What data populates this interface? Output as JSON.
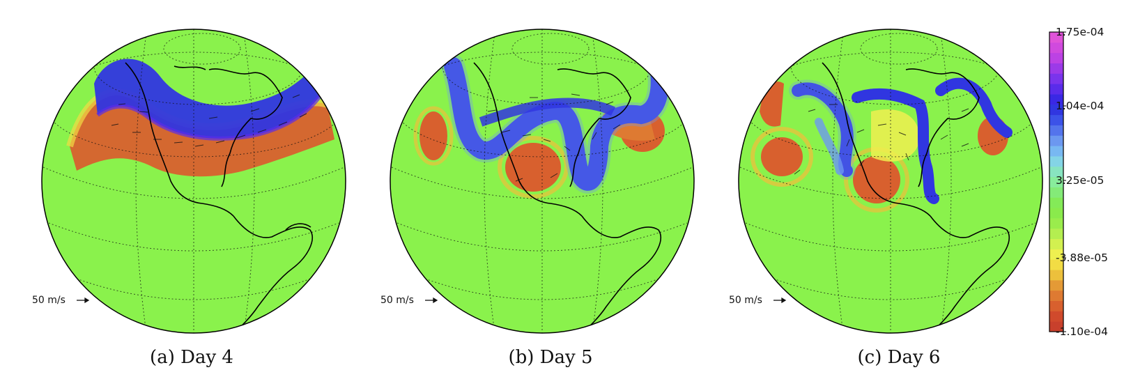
{
  "panels": [
    {
      "caption": "(a) Day 4",
      "scale_label": "50 m/s"
    },
    {
      "caption": "(b) Day 5",
      "scale_label": "50 m/s"
    },
    {
      "caption": "(c) Day 6",
      "scale_label": "50 m/s"
    }
  ],
  "colorbar": {
    "min": -0.00011,
    "max": 0.000175,
    "tick_labels": [
      "1.75e-04",
      "1.04e-04",
      "3.25e-05",
      "-3.88e-05",
      "-1.10e-04"
    ],
    "colors": [
      "#c8402c",
      "#d04a2c",
      "#d8602e",
      "#de7a32",
      "#e49a36",
      "#ecc03c",
      "#f2dc44",
      "#eef050",
      "#d2f050",
      "#b4ee50",
      "#9aec4c",
      "#8aea4c",
      "#84ea58",
      "#84ea78",
      "#88ec9c",
      "#88e4c0",
      "#84d4e6",
      "#78b8f2",
      "#6c98f0",
      "#5474ec",
      "#3c52e8",
      "#3036e0",
      "#3a28e4",
      "#5a2cea",
      "#7a34ec",
      "#9c3ae8",
      "#bc42e4",
      "#d04ade",
      "#e054d8"
    ]
  },
  "background_color": "#8af24c"
}
